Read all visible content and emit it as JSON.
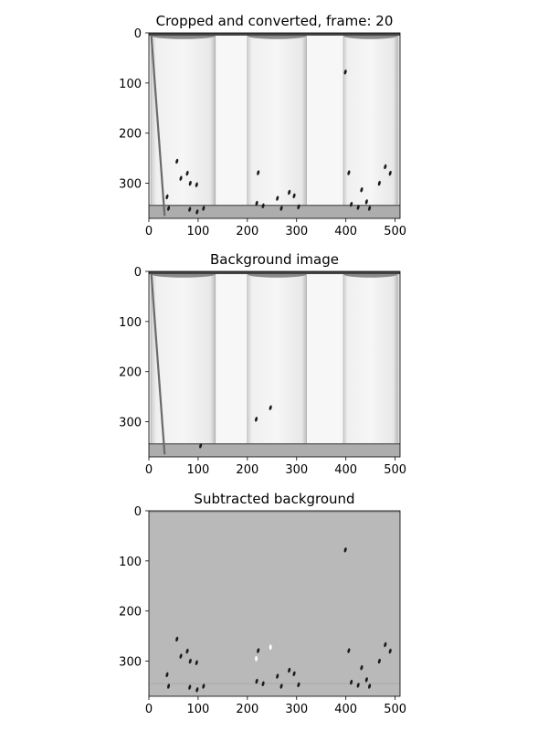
{
  "chart_data": [
    {
      "type": "image",
      "title": "Cropped and converted, frame: 20",
      "xlim": [
        0,
        510
      ],
      "ylim": [
        370,
        0
      ],
      "x_ticks": [
        0,
        100,
        200,
        300,
        400,
        500
      ],
      "y_ticks": [
        0,
        100,
        200,
        300
      ],
      "image_style": "grayscale",
      "vials": [
        {
          "x_range": [
            5,
            135
          ]
        },
        {
          "x_range": [
            200,
            320
          ]
        },
        {
          "x_range": [
            395,
            505
          ]
        }
      ],
      "objects": [
        {
          "x": 57,
          "y": 256
        },
        {
          "x": 65,
          "y": 290
        },
        {
          "x": 78,
          "y": 280
        },
        {
          "x": 84,
          "y": 300
        },
        {
          "x": 97,
          "y": 303
        },
        {
          "x": 37,
          "y": 327
        },
        {
          "x": 40,
          "y": 350
        },
        {
          "x": 83,
          "y": 352
        },
        {
          "x": 98,
          "y": 357
        },
        {
          "x": 111,
          "y": 350
        },
        {
          "x": 222,
          "y": 279
        },
        {
          "x": 219,
          "y": 340
        },
        {
          "x": 232,
          "y": 345
        },
        {
          "x": 261,
          "y": 330
        },
        {
          "x": 269,
          "y": 350
        },
        {
          "x": 285,
          "y": 318
        },
        {
          "x": 295,
          "y": 325
        },
        {
          "x": 304,
          "y": 347
        },
        {
          "x": 399,
          "y": 78
        },
        {
          "x": 406,
          "y": 279
        },
        {
          "x": 432,
          "y": 313
        },
        {
          "x": 480,
          "y": 267
        },
        {
          "x": 490,
          "y": 280
        },
        {
          "x": 468,
          "y": 300
        },
        {
          "x": 411,
          "y": 342
        },
        {
          "x": 425,
          "y": 348
        },
        {
          "x": 442,
          "y": 337
        },
        {
          "x": 448,
          "y": 350
        }
      ]
    },
    {
      "type": "image",
      "title": "Background image",
      "xlim": [
        0,
        510
      ],
      "ylim": [
        370,
        0
      ],
      "x_ticks": [
        0,
        100,
        200,
        300,
        400,
        500
      ],
      "y_ticks": [
        0,
        100,
        200,
        300
      ],
      "image_style": "grayscale",
      "objects": [
        {
          "x": 218,
          "y": 295
        },
        {
          "x": 247,
          "y": 272
        },
        {
          "x": 105,
          "y": 348
        }
      ]
    },
    {
      "type": "image",
      "title": "Subtracted background",
      "xlim": [
        0,
        510
      ],
      "ylim": [
        370,
        0
      ],
      "x_ticks": [
        0,
        100,
        200,
        300,
        400,
        500
      ],
      "y_ticks": [
        0,
        100,
        200,
        300
      ],
      "image_style": "grayscale",
      "objects": [
        {
          "x": 57,
          "y": 256
        },
        {
          "x": 65,
          "y": 290
        },
        {
          "x": 78,
          "y": 280
        },
        {
          "x": 84,
          "y": 300
        },
        {
          "x": 97,
          "y": 303
        },
        {
          "x": 37,
          "y": 327
        },
        {
          "x": 40,
          "y": 350
        },
        {
          "x": 83,
          "y": 352
        },
        {
          "x": 98,
          "y": 357
        },
        {
          "x": 111,
          "y": 350
        },
        {
          "x": 222,
          "y": 279
        },
        {
          "x": 219,
          "y": 340
        },
        {
          "x": 232,
          "y": 345
        },
        {
          "x": 261,
          "y": 330
        },
        {
          "x": 269,
          "y": 350
        },
        {
          "x": 285,
          "y": 318
        },
        {
          "x": 295,
          "y": 325
        },
        {
          "x": 304,
          "y": 347
        },
        {
          "x": 399,
          "y": 78
        },
        {
          "x": 406,
          "y": 279
        },
        {
          "x": 432,
          "y": 313
        },
        {
          "x": 480,
          "y": 267
        },
        {
          "x": 490,
          "y": 280
        },
        {
          "x": 468,
          "y": 300
        },
        {
          "x": 411,
          "y": 342
        },
        {
          "x": 425,
          "y": 348
        },
        {
          "x": 442,
          "y": 337
        },
        {
          "x": 448,
          "y": 350
        }
      ],
      "bright_objects": [
        {
          "x": 218,
          "y": 295
        },
        {
          "x": 247,
          "y": 272
        }
      ]
    }
  ]
}
